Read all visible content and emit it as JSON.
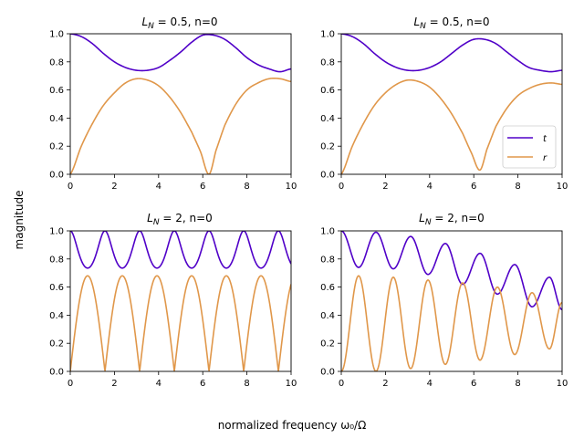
{
  "figure": {
    "xlabel": "normalized frequency ω₀/Ω",
    "ylabel": "magnitude"
  },
  "colors": {
    "t": "#5000c8",
    "r": "#e0974a"
  },
  "legend": {
    "entries": [
      {
        "label": "t",
        "color": "#5000c8"
      },
      {
        "label": "r",
        "color": "#e0974a"
      }
    ],
    "location": "lower-right of top-right panel"
  },
  "chart_data": [
    {
      "type": "line",
      "title_main": "L",
      "title_sub": "N",
      "title_rest": " = 0.5, n=0",
      "xlim": [
        0,
        10
      ],
      "ylim": [
        0,
        1
      ],
      "xticks": [
        "0",
        "2",
        "4",
        "6",
        "8",
        "10"
      ],
      "yticks": [
        "0.0",
        "0.2",
        "0.4",
        "0.6",
        "0.8",
        "1.0"
      ],
      "series": [
        {
          "name": "t",
          "color": "#5000c8",
          "x": [
            0.0,
            0.5,
            1.0,
            1.5,
            2.0,
            2.5,
            3.0,
            3.5,
            4.0,
            4.5,
            5.0,
            5.5,
            6.0,
            6.5,
            7.0,
            7.5,
            8.0,
            8.5,
            9.0,
            9.5,
            10.0
          ],
          "y": [
            1.0,
            0.98,
            0.93,
            0.86,
            0.8,
            0.76,
            0.74,
            0.74,
            0.76,
            0.81,
            0.87,
            0.94,
            0.99,
            0.99,
            0.96,
            0.9,
            0.83,
            0.78,
            0.75,
            0.73,
            0.75
          ]
        },
        {
          "name": "r",
          "color": "#e0974a",
          "x": [
            0.0,
            0.5,
            1.0,
            1.5,
            2.0,
            2.5,
            3.0,
            3.5,
            4.0,
            4.5,
            5.0,
            5.5,
            5.9,
            6.28,
            6.6,
            7.0,
            7.5,
            8.0,
            8.5,
            9.0,
            9.5,
            10.0
          ],
          "y": [
            0.0,
            0.2,
            0.36,
            0.49,
            0.58,
            0.65,
            0.68,
            0.67,
            0.63,
            0.55,
            0.44,
            0.3,
            0.16,
            0.0,
            0.17,
            0.35,
            0.5,
            0.6,
            0.65,
            0.68,
            0.68,
            0.66
          ]
        }
      ]
    },
    {
      "type": "line",
      "title_main": "L",
      "title_sub": "N",
      "title_rest": " = 0.5, n=0",
      "xlim": [
        0,
        10
      ],
      "ylim": [
        0,
        1
      ],
      "xticks": [
        "0",
        "2",
        "4",
        "6",
        "8",
        "10"
      ],
      "yticks": [
        "0.0",
        "0.2",
        "0.4",
        "0.6",
        "0.8",
        "1.0"
      ],
      "legend": true,
      "series": [
        {
          "name": "t",
          "color": "#5000c8",
          "x": [
            0.0,
            0.5,
            1.0,
            1.5,
            2.0,
            2.5,
            3.0,
            3.5,
            4.0,
            4.5,
            5.0,
            5.5,
            6.0,
            6.5,
            7.0,
            7.5,
            8.0,
            8.5,
            9.0,
            9.5,
            10.0
          ],
          "y": [
            1.0,
            0.98,
            0.93,
            0.86,
            0.8,
            0.76,
            0.74,
            0.74,
            0.76,
            0.8,
            0.86,
            0.92,
            0.96,
            0.96,
            0.93,
            0.87,
            0.81,
            0.76,
            0.74,
            0.73,
            0.74
          ]
        },
        {
          "name": "r",
          "color": "#e0974a",
          "x": [
            0.0,
            0.5,
            1.0,
            1.5,
            2.0,
            2.5,
            3.0,
            3.5,
            4.0,
            4.5,
            5.0,
            5.5,
            5.9,
            6.28,
            6.6,
            7.0,
            7.5,
            8.0,
            8.5,
            9.0,
            9.5,
            10.0
          ],
          "y": [
            0.0,
            0.2,
            0.36,
            0.49,
            0.58,
            0.64,
            0.67,
            0.66,
            0.62,
            0.54,
            0.43,
            0.29,
            0.15,
            0.03,
            0.18,
            0.34,
            0.47,
            0.56,
            0.61,
            0.64,
            0.65,
            0.64
          ]
        }
      ]
    },
    {
      "type": "line",
      "title_main": "L",
      "title_sub": "N",
      "title_rest": " = 2, n=0",
      "xlim": [
        0,
        10
      ],
      "ylim": [
        0,
        1
      ],
      "xticks": [
        "0",
        "2",
        "4",
        "6",
        "8",
        "10"
      ],
      "yticks": [
        "0.0",
        "0.2",
        "0.4",
        "0.6",
        "0.8",
        "1.0"
      ],
      "series": [
        {
          "name": "t",
          "color": "#5000c8",
          "formula": "t",
          "amp_decay": 0.0
        },
        {
          "name": "r",
          "color": "#e0974a",
          "formula": "r",
          "amp_decay": 0.0
        }
      ]
    },
    {
      "type": "line",
      "title_main": "L",
      "title_sub": "N",
      "title_rest": " = 2, n=0",
      "xlim": [
        0,
        10
      ],
      "ylim": [
        0,
        1
      ],
      "xticks": [
        "0",
        "2",
        "4",
        "6",
        "8",
        "10"
      ],
      "yticks": [
        "0.0",
        "0.2",
        "0.4",
        "0.6",
        "0.8",
        "1.0"
      ],
      "series": [
        {
          "name": "t",
          "color": "#5000c8",
          "peaks": [
            [
              0,
              1.0
            ],
            [
              1.571,
              0.99
            ],
            [
              3.142,
              0.96
            ],
            [
              4.712,
              0.91
            ],
            [
              6.283,
              0.84
            ],
            [
              7.854,
              0.76
            ],
            [
              9.425,
              0.67
            ]
          ],
          "troughs": [
            [
              0.785,
              0.74
            ],
            [
              2.356,
              0.73
            ],
            [
              3.927,
              0.69
            ],
            [
              5.498,
              0.62
            ],
            [
              7.069,
              0.55
            ],
            [
              8.639,
              0.46
            ],
            [
              10.0,
              0.44
            ]
          ]
        },
        {
          "name": "r",
          "color": "#e0974a",
          "peaks": [
            [
              0.785,
              0.68
            ],
            [
              2.356,
              0.67
            ],
            [
              3.927,
              0.65
            ],
            [
              5.498,
              0.63
            ],
            [
              7.069,
              0.6
            ],
            [
              8.639,
              0.56
            ],
            [
              10.0,
              0.49
            ]
          ],
          "troughs": [
            [
              0,
              0.0
            ],
            [
              1.571,
              0.0
            ],
            [
              3.142,
              0.02
            ],
            [
              4.712,
              0.05
            ],
            [
              6.283,
              0.08
            ],
            [
              7.854,
              0.12
            ],
            [
              9.425,
              0.16
            ]
          ]
        }
      ]
    }
  ]
}
